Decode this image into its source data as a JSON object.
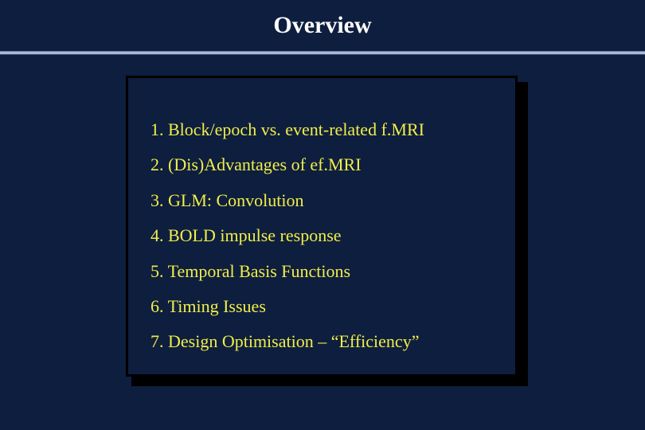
{
  "title": "Overview",
  "colors": {
    "background": "#0e1e3e",
    "title_text": "#ffffff",
    "divider": "#aab9d4",
    "item_text": "#f0ee4a",
    "box_border": "#000000",
    "box_shadow": "#000000"
  },
  "title_font": {
    "family": "Comic Sans MS",
    "size_pt": 30,
    "weight": "bold"
  },
  "item_font": {
    "family": "Times New Roman",
    "size_pt": 22,
    "weight": "normal"
  },
  "items": [
    "1. Block/epoch vs. event-related f.MRI",
    "2. (Dis)Advantages of ef.MRI",
    "3. GLM: Convolution",
    "4. BOLD impulse response",
    "5. Temporal Basis Functions",
    "6. Timing Issues",
    "7. Design Optimisation – “Efficiency”"
  ]
}
